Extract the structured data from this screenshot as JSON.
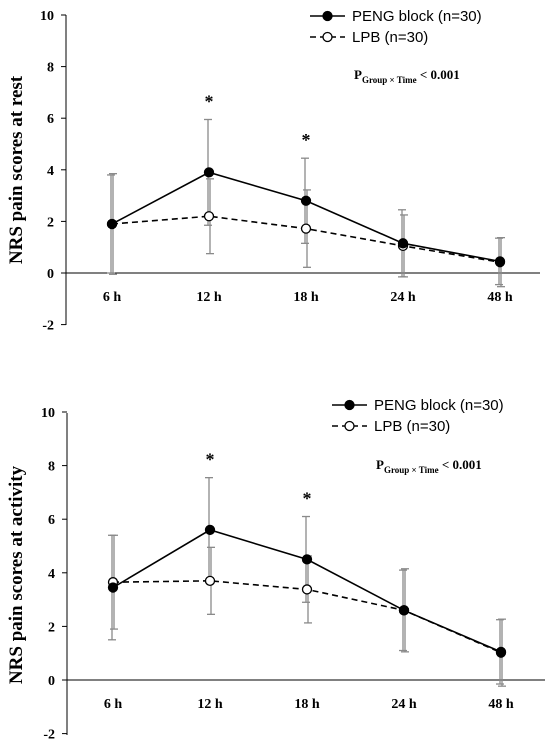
{
  "chart_data": [
    {
      "type": "line",
      "ylabel": "NRS pain scores at rest",
      "ylim": [
        -2,
        10
      ],
      "yticks": [
        "-2",
        "0",
        "2",
        "4",
        "6",
        "8",
        "10"
      ],
      "categories": [
        "6 h",
        "12 h",
        "18 h",
        "24 h",
        "48 h"
      ],
      "series": [
        {
          "name": "PENG block (n=30)",
          "marker": "filled",
          "dash": false,
          "values": [
            1.9,
            3.9,
            2.8,
            1.15,
            0.45
          ],
          "sd": [
            1.9,
            2.05,
            1.65,
            1.3,
            0.9
          ]
        },
        {
          "name": "LPB (n=30)",
          "marker": "open",
          "dash": true,
          "values": [
            1.9,
            2.2,
            1.72,
            1.05,
            0.42
          ],
          "sd": [
            1.95,
            1.45,
            1.5,
            1.2,
            0.95
          ]
        }
      ],
      "significance": [
        "",
        "*",
        "*",
        "",
        ""
      ],
      "annotation": {
        "prefix": "P",
        "subscript": "Group × Time",
        "suffix": " < 0.001"
      },
      "legend_position": "top-right"
    },
    {
      "type": "line",
      "ylabel": "NRS pain scores at activity",
      "ylim": [
        -2,
        10
      ],
      "yticks": [
        "-2",
        "0",
        "2",
        "4",
        "6",
        "8",
        "10"
      ],
      "categories": [
        "6 h",
        "12 h",
        "18 h",
        "24 h",
        "48 h"
      ],
      "series": [
        {
          "name": "PENG block (n=30)",
          "marker": "filled",
          "dash": false,
          "values": [
            3.45,
            5.6,
            4.5,
            2.6,
            1.05
          ],
          "sd": [
            1.95,
            1.95,
            1.6,
            1.5,
            1.2
          ]
        },
        {
          "name": "LPB (n=30)",
          "marker": "open",
          "dash": true,
          "values": [
            3.65,
            3.7,
            3.38,
            2.6,
            1.02
          ],
          "sd": [
            1.75,
            1.25,
            1.25,
            1.55,
            1.25
          ]
        }
      ],
      "significance": [
        "",
        "*",
        "*",
        "",
        ""
      ],
      "annotation": {
        "prefix": "P",
        "subscript": "Group × Time",
        "suffix": " < 0.001"
      },
      "legend_position": "top-right"
    }
  ]
}
